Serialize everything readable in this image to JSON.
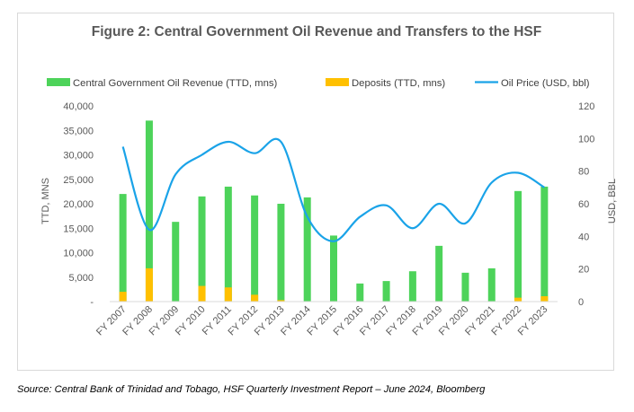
{
  "chart_data": {
    "type": "bar",
    "title": "Figure 2: Central Government Oil Revenue and Transfers to the HSF",
    "categories": [
      "FY 2007",
      "FY 2008",
      "FY 2009",
      "FY 2010",
      "FY 2011",
      "FY 2012",
      "FY 2013",
      "FY 2014",
      "FY 2015",
      "FY 2016",
      "FY 2017",
      "FY 2018",
      "FY 2019",
      "FY 2020",
      "FY 2021",
      "FY 2022",
      "FY 2023"
    ],
    "series": [
      {
        "name": "Central Government Oil Revenue (TTD, mns)",
        "kind": "bar",
        "axis": "left",
        "color": "#4dd35a",
        "values": [
          22000,
          37000,
          16300,
          21500,
          23500,
          21700,
          20000,
          21300,
          13500,
          3700,
          4200,
          6200,
          11400,
          5900,
          6800,
          22600,
          23500
        ]
      },
      {
        "name": "Deposits (TTD, mns)",
        "kind": "bar",
        "axis": "left",
        "color": "#ffc000",
        "values": [
          2000,
          6800,
          0,
          3200,
          2900,
          1400,
          300,
          0,
          0,
          0,
          0,
          0,
          0,
          0,
          0,
          800,
          1100
        ]
      },
      {
        "name": "Oil Price (USD, bbl)",
        "kind": "line",
        "axis": "right",
        "color": "#1aa3e8",
        "values": [
          95,
          44,
          78,
          90,
          98,
          91,
          98,
          52,
          37,
          52,
          59,
          45,
          60,
          48,
          73,
          79,
          70
        ]
      }
    ],
    "ylabel": "TTD, MNS",
    "y2label": "USD, BBL",
    "ylim": [
      0,
      40000
    ],
    "y2lim": [
      0,
      120
    ],
    "yticks": [
      "-",
      "5,000",
      "10,000",
      "15,000",
      "20,000",
      "25,000",
      "30,000",
      "35,000",
      "40,000"
    ],
    "y2ticks": [
      "0",
      "20",
      "40",
      "60",
      "80",
      "100",
      "120"
    ],
    "legend_position": "top",
    "grid": false
  },
  "source": "Source: Central Bank of Trinidad and Tobago, HSF Quarterly Investment Report – June 2024, Bloomberg"
}
